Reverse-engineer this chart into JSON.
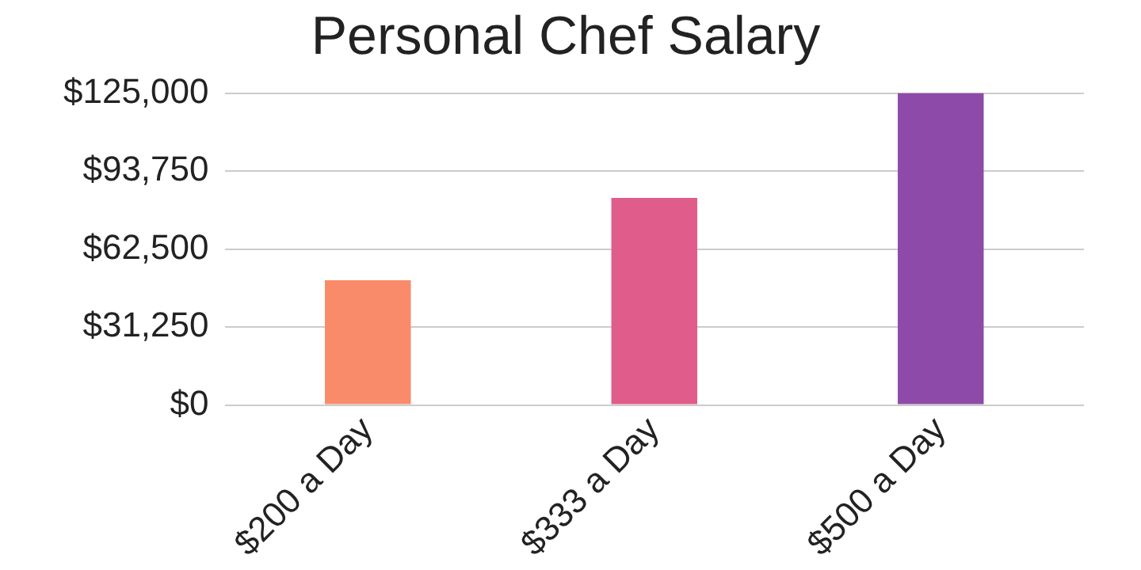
{
  "chart_data": {
    "type": "bar",
    "title": "Personal Chef Salary",
    "categories": [
      "$200 a Day",
      "$333 a Day",
      "$500 a Day"
    ],
    "values": [
      50000,
      83000,
      125000
    ],
    "colors": [
      "#f98b6b",
      "#e05c8a",
      "#8e4aa8"
    ],
    "ylim": [
      0,
      125000
    ],
    "yticks": [
      {
        "value": 0,
        "label": "$0"
      },
      {
        "value": 31250,
        "label": "$31,250"
      },
      {
        "value": 62500,
        "label": "$62,500"
      },
      {
        "value": 93750,
        "label": "$93,750"
      },
      {
        "value": 125000,
        "label": "$125,000"
      }
    ],
    "grid": "y",
    "legend": false
  }
}
